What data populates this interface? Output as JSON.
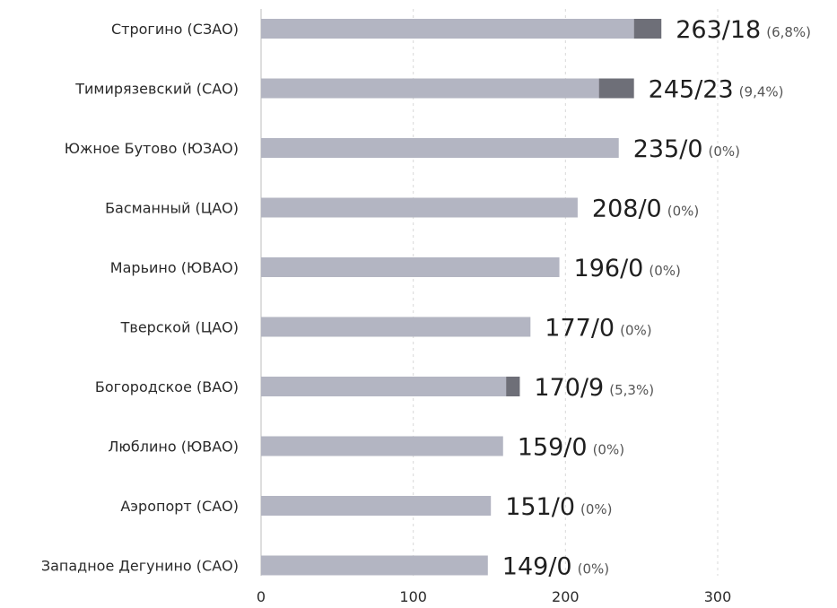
{
  "chart_data": {
    "type": "bar",
    "orientation": "horizontal",
    "stacked": true,
    "categories": [
      "Строгино (СЗАО)",
      "Тимирязевский (САО)",
      "Южное Бутово (ЮЗАО)",
      "Басманный (ЦАО)",
      "Марьино (ЮВАО)",
      "Тверской (ЦАО)",
      "Богородское (ВАО)",
      "Люблино (ЮВАО)",
      "Аэропорт (САО)",
      "Западное Дегунино (САО)"
    ],
    "series": [
      {
        "values": [
          245,
          222,
          235,
          208,
          196,
          177,
          161,
          159,
          151,
          149
        ],
        "color": "#b3b5c2"
      },
      {
        "values": [
          18,
          23,
          0,
          0,
          0,
          0,
          9,
          0,
          0,
          0
        ],
        "color": "#6e6f78"
      }
    ],
    "totals": [
      263,
      245,
      235,
      208,
      196,
      177,
      170,
      159,
      151,
      149
    ],
    "value_labels": [
      "263/18",
      "245/23",
      "235/0",
      "208/0",
      "196/0",
      "177/0",
      "170/9",
      "159/0",
      "151/0",
      "149/0"
    ],
    "pct_labels": [
      "(6,8%)",
      "(9,4%)",
      "(0%)",
      "(0%)",
      "(0%)",
      "(0%)",
      "(5,3%)",
      "(0%)",
      "(0%)",
      "(0%)"
    ],
    "xticks": [
      "0",
      "100",
      "200",
      "300"
    ],
    "xlim": [
      0,
      300
    ],
    "grid": true,
    "title": "",
    "xlabel": "",
    "ylabel": ""
  }
}
